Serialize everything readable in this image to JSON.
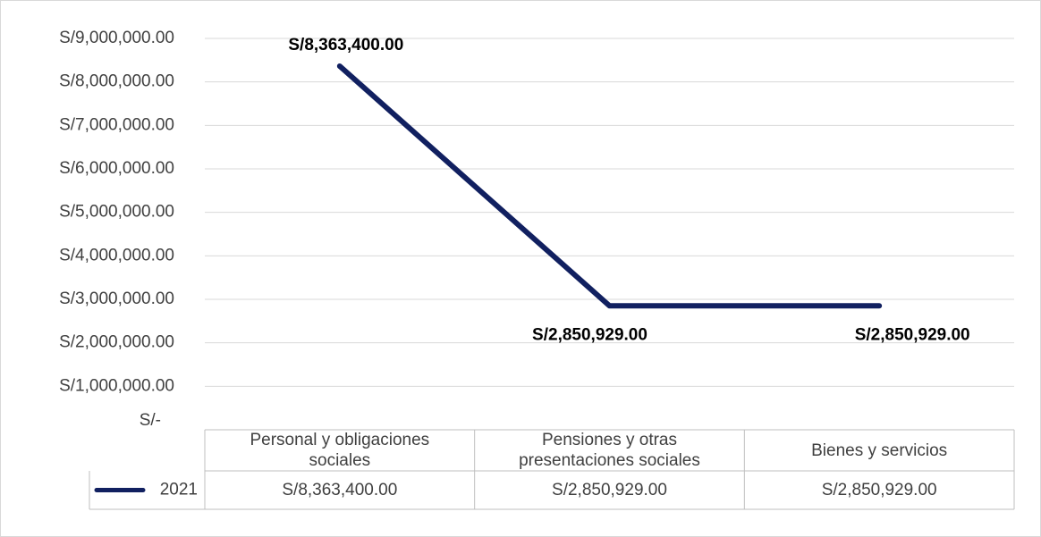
{
  "chart_data": {
    "type": "line",
    "categories": [
      "Personal y obligaciones sociales",
      "Pensiones y otras presentaciones sociales",
      "Bienes y servicios"
    ],
    "series": [
      {
        "name": "2021",
        "color": "#112060",
        "values": [
          8363400,
          2850929,
          2850929
        ],
        "value_labels": [
          "S/8,363,400.00",
          "S/2,850,929.00",
          "S/2,850,929.00"
        ]
      }
    ],
    "ylim": [
      0,
      9000000
    ],
    "yticks": [
      {
        "value": 0,
        "label": "S/-"
      },
      {
        "value": 1000000,
        "label": "S/1,000,000.00"
      },
      {
        "value": 2000000,
        "label": "S/2,000,000.00"
      },
      {
        "value": 3000000,
        "label": "S/3,000,000.00"
      },
      {
        "value": 4000000,
        "label": "S/4,000,000.00"
      },
      {
        "value": 5000000,
        "label": "S/5,000,000.00"
      },
      {
        "value": 6000000,
        "label": "S/6,000,000.00"
      },
      {
        "value": 7000000,
        "label": "S/7,000,000.00"
      },
      {
        "value": 8000000,
        "label": "S/8,000,000.00"
      },
      {
        "value": 9000000,
        "label": "S/9,000,000.00"
      }
    ],
    "grid": true,
    "data_table": true
  }
}
